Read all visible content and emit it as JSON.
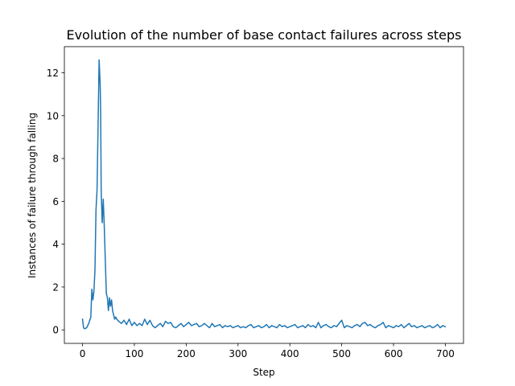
{
  "chart_data": {
    "type": "line",
    "title": "Evolution of the number of base contact failures across steps",
    "xlabel": "Step",
    "ylabel": "Instances of failure through falling",
    "xlim": [
      -35,
      735
    ],
    "ylim": [
      -0.63,
      13.22
    ],
    "xticks": [
      0,
      100,
      200,
      300,
      400,
      500,
      600,
      700
    ],
    "yticks": [
      0,
      2,
      4,
      6,
      8,
      10,
      12
    ],
    "grid": false,
    "legend": "none",
    "color": "#1f77b4",
    "series": [
      {
        "x": [
          0,
          2,
          4,
          8,
          12,
          16,
          18,
          20,
          22,
          24,
          26,
          28,
          30,
          32,
          34,
          35,
          36,
          38,
          40,
          42,
          44,
          46,
          48,
          50,
          52,
          54,
          56,
          58,
          60,
          62,
          64,
          66,
          70,
          75,
          80,
          85,
          90,
          95,
          100,
          105,
          110,
          115,
          120,
          125,
          130,
          135,
          140,
          145,
          150,
          155,
          160,
          165,
          170,
          175,
          180,
          185,
          190,
          195,
          200,
          205,
          210,
          215,
          220,
          225,
          230,
          235,
          240,
          245,
          250,
          255,
          260,
          265,
          270,
          275,
          280,
          285,
          290,
          295,
          300,
          305,
          310,
          315,
          320,
          325,
          330,
          335,
          340,
          345,
          350,
          355,
          360,
          365,
          370,
          375,
          380,
          385,
          390,
          395,
          400,
          405,
          410,
          415,
          420,
          425,
          430,
          435,
          440,
          445,
          450,
          455,
          460,
          465,
          470,
          475,
          480,
          485,
          490,
          495,
          500,
          505,
          510,
          515,
          520,
          525,
          530,
          535,
          540,
          545,
          550,
          555,
          560,
          565,
          570,
          575,
          580,
          585,
          590,
          595,
          600,
          605,
          610,
          615,
          620,
          625,
          630,
          635,
          640,
          645,
          650,
          655,
          660,
          665,
          670,
          675,
          680,
          685,
          690,
          695,
          700
        ],
        "y": [
          0.5,
          0.1,
          0.05,
          0.1,
          0.3,
          0.6,
          1.9,
          1.4,
          1.8,
          2.8,
          5.6,
          6.5,
          9.5,
          12.6,
          11.5,
          10.2,
          6.5,
          5.0,
          6.1,
          4.8,
          3.2,
          1.7,
          1.5,
          0.9,
          1.5,
          1.1,
          1.4,
          0.9,
          0.7,
          0.5,
          0.6,
          0.5,
          0.4,
          0.3,
          0.45,
          0.25,
          0.5,
          0.2,
          0.35,
          0.2,
          0.3,
          0.2,
          0.5,
          0.25,
          0.45,
          0.2,
          0.1,
          0.2,
          0.3,
          0.15,
          0.4,
          0.3,
          0.35,
          0.15,
          0.1,
          0.2,
          0.3,
          0.15,
          0.25,
          0.35,
          0.2,
          0.25,
          0.3,
          0.15,
          0.2,
          0.3,
          0.2,
          0.1,
          0.3,
          0.15,
          0.2,
          0.25,
          0.1,
          0.2,
          0.15,
          0.2,
          0.1,
          0.15,
          0.2,
          0.1,
          0.15,
          0.1,
          0.2,
          0.25,
          0.1,
          0.15,
          0.2,
          0.1,
          0.15,
          0.25,
          0.1,
          0.2,
          0.15,
          0.1,
          0.25,
          0.15,
          0.2,
          0.1,
          0.15,
          0.2,
          0.25,
          0.1,
          0.15,
          0.2,
          0.1,
          0.25,
          0.15,
          0.2,
          0.1,
          0.35,
          0.1,
          0.2,
          0.25,
          0.15,
          0.1,
          0.2,
          0.15,
          0.3,
          0.45,
          0.1,
          0.2,
          0.15,
          0.1,
          0.2,
          0.25,
          0.15,
          0.3,
          0.35,
          0.2,
          0.25,
          0.15,
          0.1,
          0.2,
          0.25,
          0.35,
          0.1,
          0.2,
          0.15,
          0.1,
          0.2,
          0.15,
          0.25,
          0.1,
          0.2,
          0.3,
          0.15,
          0.2,
          0.1,
          0.15,
          0.2,
          0.1,
          0.15,
          0.2,
          0.1,
          0.15,
          0.25,
          0.1,
          0.2,
          0.15
        ]
      }
    ]
  }
}
